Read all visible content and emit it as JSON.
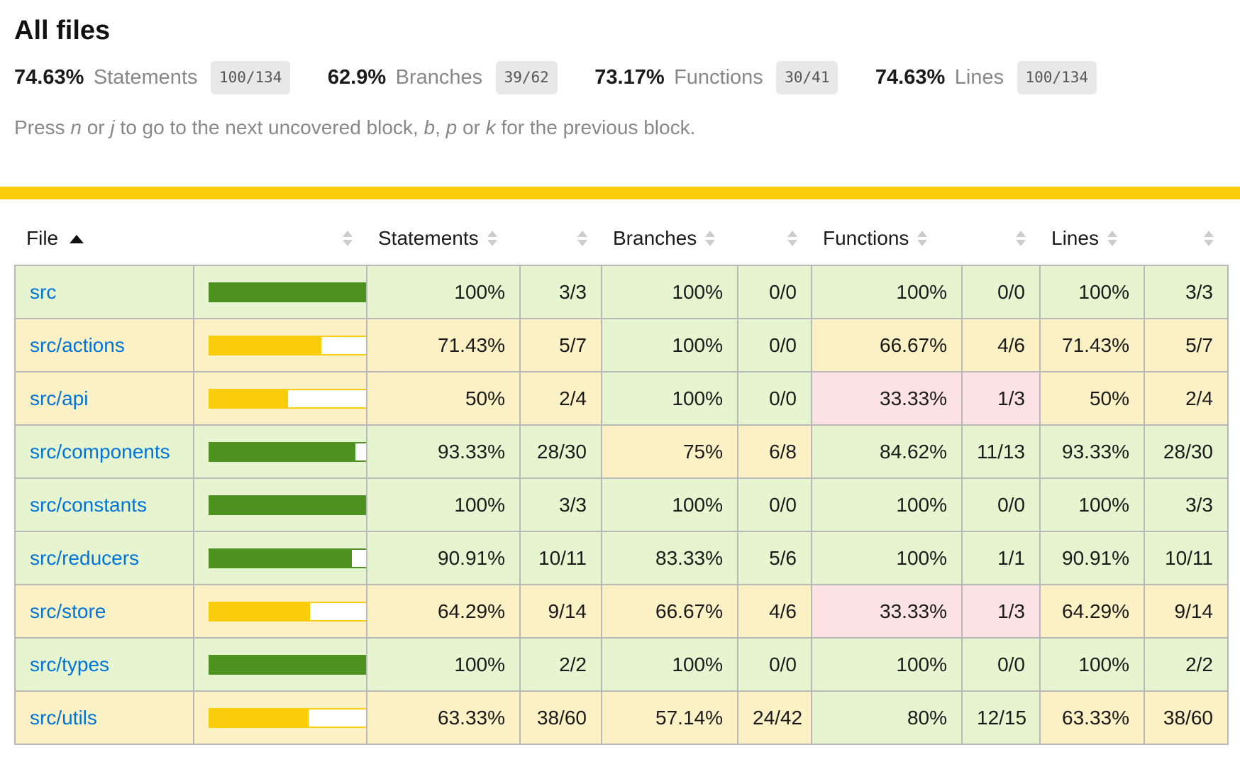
{
  "page": {
    "title": "All files"
  },
  "summary": {
    "items": [
      {
        "pct": "74.63%",
        "label": "Statements",
        "fraction": "100/134"
      },
      {
        "pct": "62.9%",
        "label": "Branches",
        "fraction": "39/62"
      },
      {
        "pct": "73.17%",
        "label": "Functions",
        "fraction": "30/41"
      },
      {
        "pct": "74.63%",
        "label": "Lines",
        "fraction": "100/134"
      }
    ]
  },
  "hint": {
    "parts": [
      {
        "text": "Press "
      },
      {
        "text": "n",
        "em": true
      },
      {
        "text": " or "
      },
      {
        "text": "j",
        "em": true
      },
      {
        "text": " to go to the next uncovered block, "
      },
      {
        "text": "b",
        "em": true
      },
      {
        "text": ", "
      },
      {
        "text": "p",
        "em": true
      },
      {
        "text": " or "
      },
      {
        "text": "k",
        "em": true
      },
      {
        "text": " for the previous block."
      }
    ]
  },
  "status_bar_level": "medium",
  "table": {
    "headers": {
      "file": "File",
      "statements": "Statements",
      "branches": "Branches",
      "functions": "Functions",
      "lines": "Lines"
    },
    "sort": {
      "column": "file",
      "direction": "asc"
    },
    "rows": [
      {
        "file": "src",
        "file_level": "high",
        "bar_pct": 100,
        "metrics": {
          "statements": {
            "pct": "100%",
            "ratio": "3/3",
            "level": "high"
          },
          "branches": {
            "pct": "100%",
            "ratio": "0/0",
            "level": "high"
          },
          "functions": {
            "pct": "100%",
            "ratio": "0/0",
            "level": "high"
          },
          "lines": {
            "pct": "100%",
            "ratio": "3/3",
            "level": "high"
          }
        }
      },
      {
        "file": "src/actions",
        "file_level": "medium",
        "bar_pct": 71.43,
        "metrics": {
          "statements": {
            "pct": "71.43%",
            "ratio": "5/7",
            "level": "medium"
          },
          "branches": {
            "pct": "100%",
            "ratio": "0/0",
            "level": "high"
          },
          "functions": {
            "pct": "66.67%",
            "ratio": "4/6",
            "level": "medium"
          },
          "lines": {
            "pct": "71.43%",
            "ratio": "5/7",
            "level": "medium"
          }
        }
      },
      {
        "file": "src/api",
        "file_level": "medium",
        "bar_pct": 50,
        "metrics": {
          "statements": {
            "pct": "50%",
            "ratio": "2/4",
            "level": "medium"
          },
          "branches": {
            "pct": "100%",
            "ratio": "0/0",
            "level": "high"
          },
          "functions": {
            "pct": "33.33%",
            "ratio": "1/3",
            "level": "low"
          },
          "lines": {
            "pct": "50%",
            "ratio": "2/4",
            "level": "medium"
          }
        }
      },
      {
        "file": "src/components",
        "file_level": "high",
        "bar_pct": 93.33,
        "metrics": {
          "statements": {
            "pct": "93.33%",
            "ratio": "28/30",
            "level": "high"
          },
          "branches": {
            "pct": "75%",
            "ratio": "6/8",
            "level": "medium"
          },
          "functions": {
            "pct": "84.62%",
            "ratio": "11/13",
            "level": "high"
          },
          "lines": {
            "pct": "93.33%",
            "ratio": "28/30",
            "level": "high"
          }
        }
      },
      {
        "file": "src/constants",
        "file_level": "high",
        "bar_pct": 100,
        "metrics": {
          "statements": {
            "pct": "100%",
            "ratio": "3/3",
            "level": "high"
          },
          "branches": {
            "pct": "100%",
            "ratio": "0/0",
            "level": "high"
          },
          "functions": {
            "pct": "100%",
            "ratio": "0/0",
            "level": "high"
          },
          "lines": {
            "pct": "100%",
            "ratio": "3/3",
            "level": "high"
          }
        }
      },
      {
        "file": "src/reducers",
        "file_level": "high",
        "bar_pct": 90.91,
        "metrics": {
          "statements": {
            "pct": "90.91%",
            "ratio": "10/11",
            "level": "high"
          },
          "branches": {
            "pct": "83.33%",
            "ratio": "5/6",
            "level": "high"
          },
          "functions": {
            "pct": "100%",
            "ratio": "1/1",
            "level": "high"
          },
          "lines": {
            "pct": "90.91%",
            "ratio": "10/11",
            "level": "high"
          }
        }
      },
      {
        "file": "src/store",
        "file_level": "medium",
        "bar_pct": 64.29,
        "metrics": {
          "statements": {
            "pct": "64.29%",
            "ratio": "9/14",
            "level": "medium"
          },
          "branches": {
            "pct": "66.67%",
            "ratio": "4/6",
            "level": "medium"
          },
          "functions": {
            "pct": "33.33%",
            "ratio": "1/3",
            "level": "low"
          },
          "lines": {
            "pct": "64.29%",
            "ratio": "9/14",
            "level": "medium"
          }
        }
      },
      {
        "file": "src/types",
        "file_level": "high",
        "bar_pct": 100,
        "metrics": {
          "statements": {
            "pct": "100%",
            "ratio": "2/2",
            "level": "high"
          },
          "branches": {
            "pct": "100%",
            "ratio": "0/0",
            "level": "high"
          },
          "functions": {
            "pct": "100%",
            "ratio": "0/0",
            "level": "high"
          },
          "lines": {
            "pct": "100%",
            "ratio": "2/2",
            "level": "high"
          }
        }
      },
      {
        "file": "src/utils",
        "file_level": "medium",
        "bar_pct": 63.33,
        "metrics": {
          "statements": {
            "pct": "63.33%",
            "ratio": "38/60",
            "level": "medium"
          },
          "branches": {
            "pct": "57.14%",
            "ratio": "24/42",
            "level": "medium"
          },
          "functions": {
            "pct": "80%",
            "ratio": "12/15",
            "level": "high"
          },
          "lines": {
            "pct": "63.33%",
            "ratio": "38/60",
            "level": "medium"
          }
        }
      }
    ]
  },
  "colors": {
    "status_bar": "#f9cd0b",
    "high_bg": "#e6f5d0",
    "medium_bg": "#fcf1c5",
    "low_bg": "#fce1e5",
    "high_fill": "#4d9221",
    "medium_fill": "#f9cd0b",
    "link": "#0074d9",
    "fraction_badge_bg": "#e8e8e8"
  }
}
